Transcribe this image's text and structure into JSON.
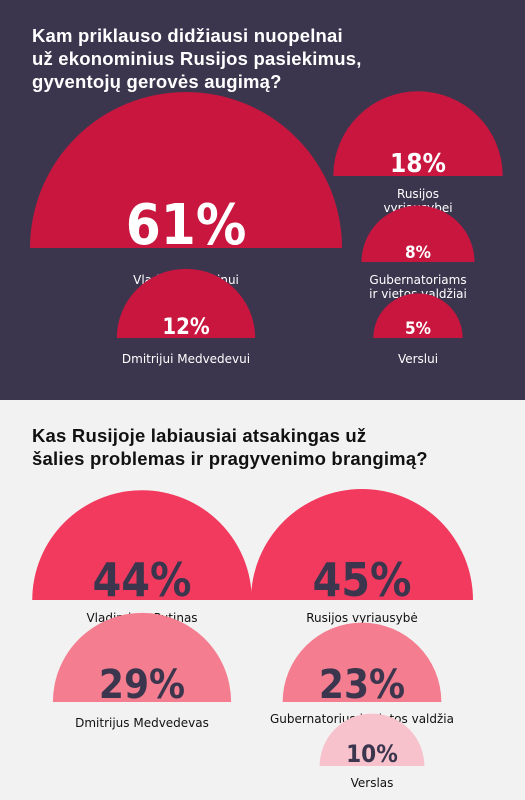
{
  "sections": [
    {
      "title_lines": [
        "Kam priklauso didžiausi nuopelnai",
        "už ekonominius Rusijos pasiekimus,",
        "gyventojų gerovės augimą?"
      ],
      "background": "#3b364e"
    },
    {
      "title_lines": [
        "Kas Rusijoje labiausiai atsakingas už",
        "šalies problemas ir pragyvenimo brangimą?"
      ],
      "background": "#f2f2f2"
    }
  ],
  "chart_data": [
    {
      "type": "proportional-semicircle",
      "title": "Kam priklauso didžiausi nuopelnai už ekonominius Rusijos pasiekimus, gyventojų gerovės augimą?",
      "categories": [
        "Vladimirui Putinui",
        "Rusijos vyriausybei",
        "Gubernatoriams ir vietos valdžiai",
        "Dmitrijui Medvedevui",
        "Verslui"
      ],
      "values": [
        61,
        18,
        8,
        12,
        5
      ],
      "value_labels": [
        "61%",
        "18%",
        "8%",
        "12%",
        "5%"
      ],
      "label_lines": [
        [
          "Vladimirui Putinui"
        ],
        [
          "Rusijos",
          "vyriausybei"
        ],
        [
          "Gubernatoriams",
          "ir vietos valdžiai"
        ],
        [
          "Dmitrijui Medvedevui"
        ],
        [
          "Verslui"
        ]
      ],
      "unit": "%",
      "colors": {
        "semicircle": "#c8163f",
        "value_text": "#ffffff",
        "label_text": "#ffffff"
      }
    },
    {
      "type": "proportional-semicircle",
      "title": "Kas Rusijoje labiausiai atsakingas už šalies problemas ir pragyvenimo brangimą?",
      "categories": [
        "Vladimiras Putinas",
        "Rusijos vyriausybė",
        "Dmitrijus Medvedevas",
        "Gubernatorius ir vietos valdžia",
        "Verslas"
      ],
      "values": [
        44,
        45,
        29,
        23,
        10
      ],
      "value_labels": [
        "44%",
        "45%",
        "29%",
        "23%",
        "10%"
      ],
      "label_lines": [
        [
          "Vladimiras Putinas"
        ],
        [
          "Rusijos vyriausybė"
        ],
        [
          "Dmitrijus Medvedevas"
        ],
        [
          "Gubernatorius ir vietos valdžia"
        ],
        [
          "Verslas"
        ]
      ],
      "unit": "%",
      "colors": {
        "semicircle_large": "#f23a5e",
        "semicircle_mid": "#f47d8f",
        "semicircle_small": "#f7c2cc",
        "value_text": "#3b364e",
        "label_text": "#111111"
      }
    }
  ]
}
